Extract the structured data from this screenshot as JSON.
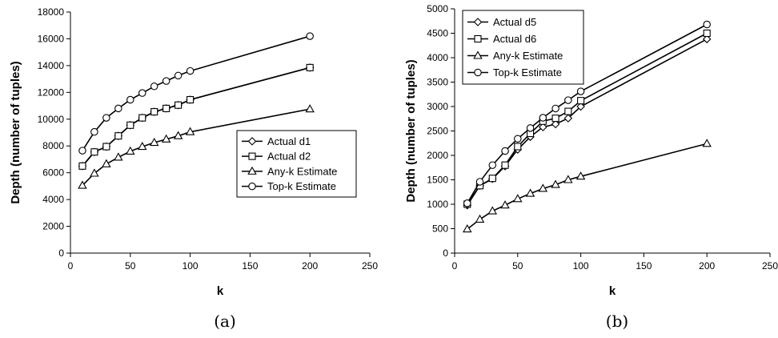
{
  "chart_data": [
    {
      "type": "line",
      "caption": "(a)",
      "xlabel": "k",
      "ylabel": "Depth (number of tuples)",
      "xlim": [
        0,
        250
      ],
      "ylim": [
        0,
        18000
      ],
      "xticks": [
        "0",
        "50",
        "100",
        "150",
        "200",
        "250"
      ],
      "yticks": [
        "0",
        "2000",
        "4000",
        "6000",
        "8000",
        "10000",
        "12000",
        "14000",
        "16000",
        "18000"
      ],
      "grid": false,
      "legend_position": "center-right",
      "x": [
        10,
        20,
        30,
        40,
        50,
        60,
        70,
        80,
        90,
        100,
        200
      ],
      "series": [
        {
          "name": "Actual d1",
          "marker": "diamond",
          "values": [
            6500,
            7550,
            7950,
            8750,
            9550,
            10100,
            10550,
            10800,
            11050,
            11450,
            13850
          ]
        },
        {
          "name": "Actual d2",
          "marker": "square",
          "values": [
            6500,
            7550,
            7950,
            8750,
            9550,
            10100,
            10550,
            10800,
            11050,
            11450,
            13850
          ]
        },
        {
          "name": "Any-k Estimate",
          "marker": "triangle",
          "values": [
            5050,
            5950,
            6650,
            7150,
            7600,
            7950,
            8250,
            8500,
            8750,
            9050,
            10750
          ]
        },
        {
          "name": "Top-k Estimate",
          "marker": "circle",
          "values": [
            7650,
            9050,
            10100,
            10800,
            11450,
            11950,
            12450,
            12850,
            13250,
            13600,
            16200
          ]
        }
      ]
    },
    {
      "type": "line",
      "caption": "(b)",
      "xlabel": "k",
      "ylabel": "Depth (number of tuples)",
      "xlim": [
        0,
        250
      ],
      "ylim": [
        0,
        5000
      ],
      "xticks": [
        "0",
        "50",
        "100",
        "150",
        "200",
        "250"
      ],
      "yticks": [
        "0",
        "500",
        "1000",
        "1500",
        "2000",
        "2500",
        "3000",
        "3500",
        "4000",
        "4500",
        "5000"
      ],
      "grid": false,
      "legend_position": "top-left",
      "x": [
        10,
        20,
        30,
        40,
        50,
        60,
        70,
        80,
        90,
        100,
        200
      ],
      "series": [
        {
          "name": "Actual d5",
          "marker": "diamond",
          "values": [
            980,
            1380,
            1520,
            1780,
            2120,
            2380,
            2580,
            2640,
            2760,
            3000,
            4380
          ]
        },
        {
          "name": "Actual d6",
          "marker": "square",
          "values": [
            1000,
            1380,
            1530,
            1800,
            2180,
            2450,
            2700,
            2760,
            2900,
            3120,
            4500
          ]
        },
        {
          "name": "Any-k Estimate",
          "marker": "triangle",
          "values": [
            490,
            690,
            860,
            980,
            1110,
            1220,
            1320,
            1400,
            1500,
            1570,
            2240
          ]
        },
        {
          "name": "Top-k Estimate",
          "marker": "circle",
          "values": [
            1020,
            1460,
            1800,
            2090,
            2340,
            2560,
            2770,
            2960,
            3130,
            3310,
            4680
          ]
        }
      ]
    }
  ]
}
